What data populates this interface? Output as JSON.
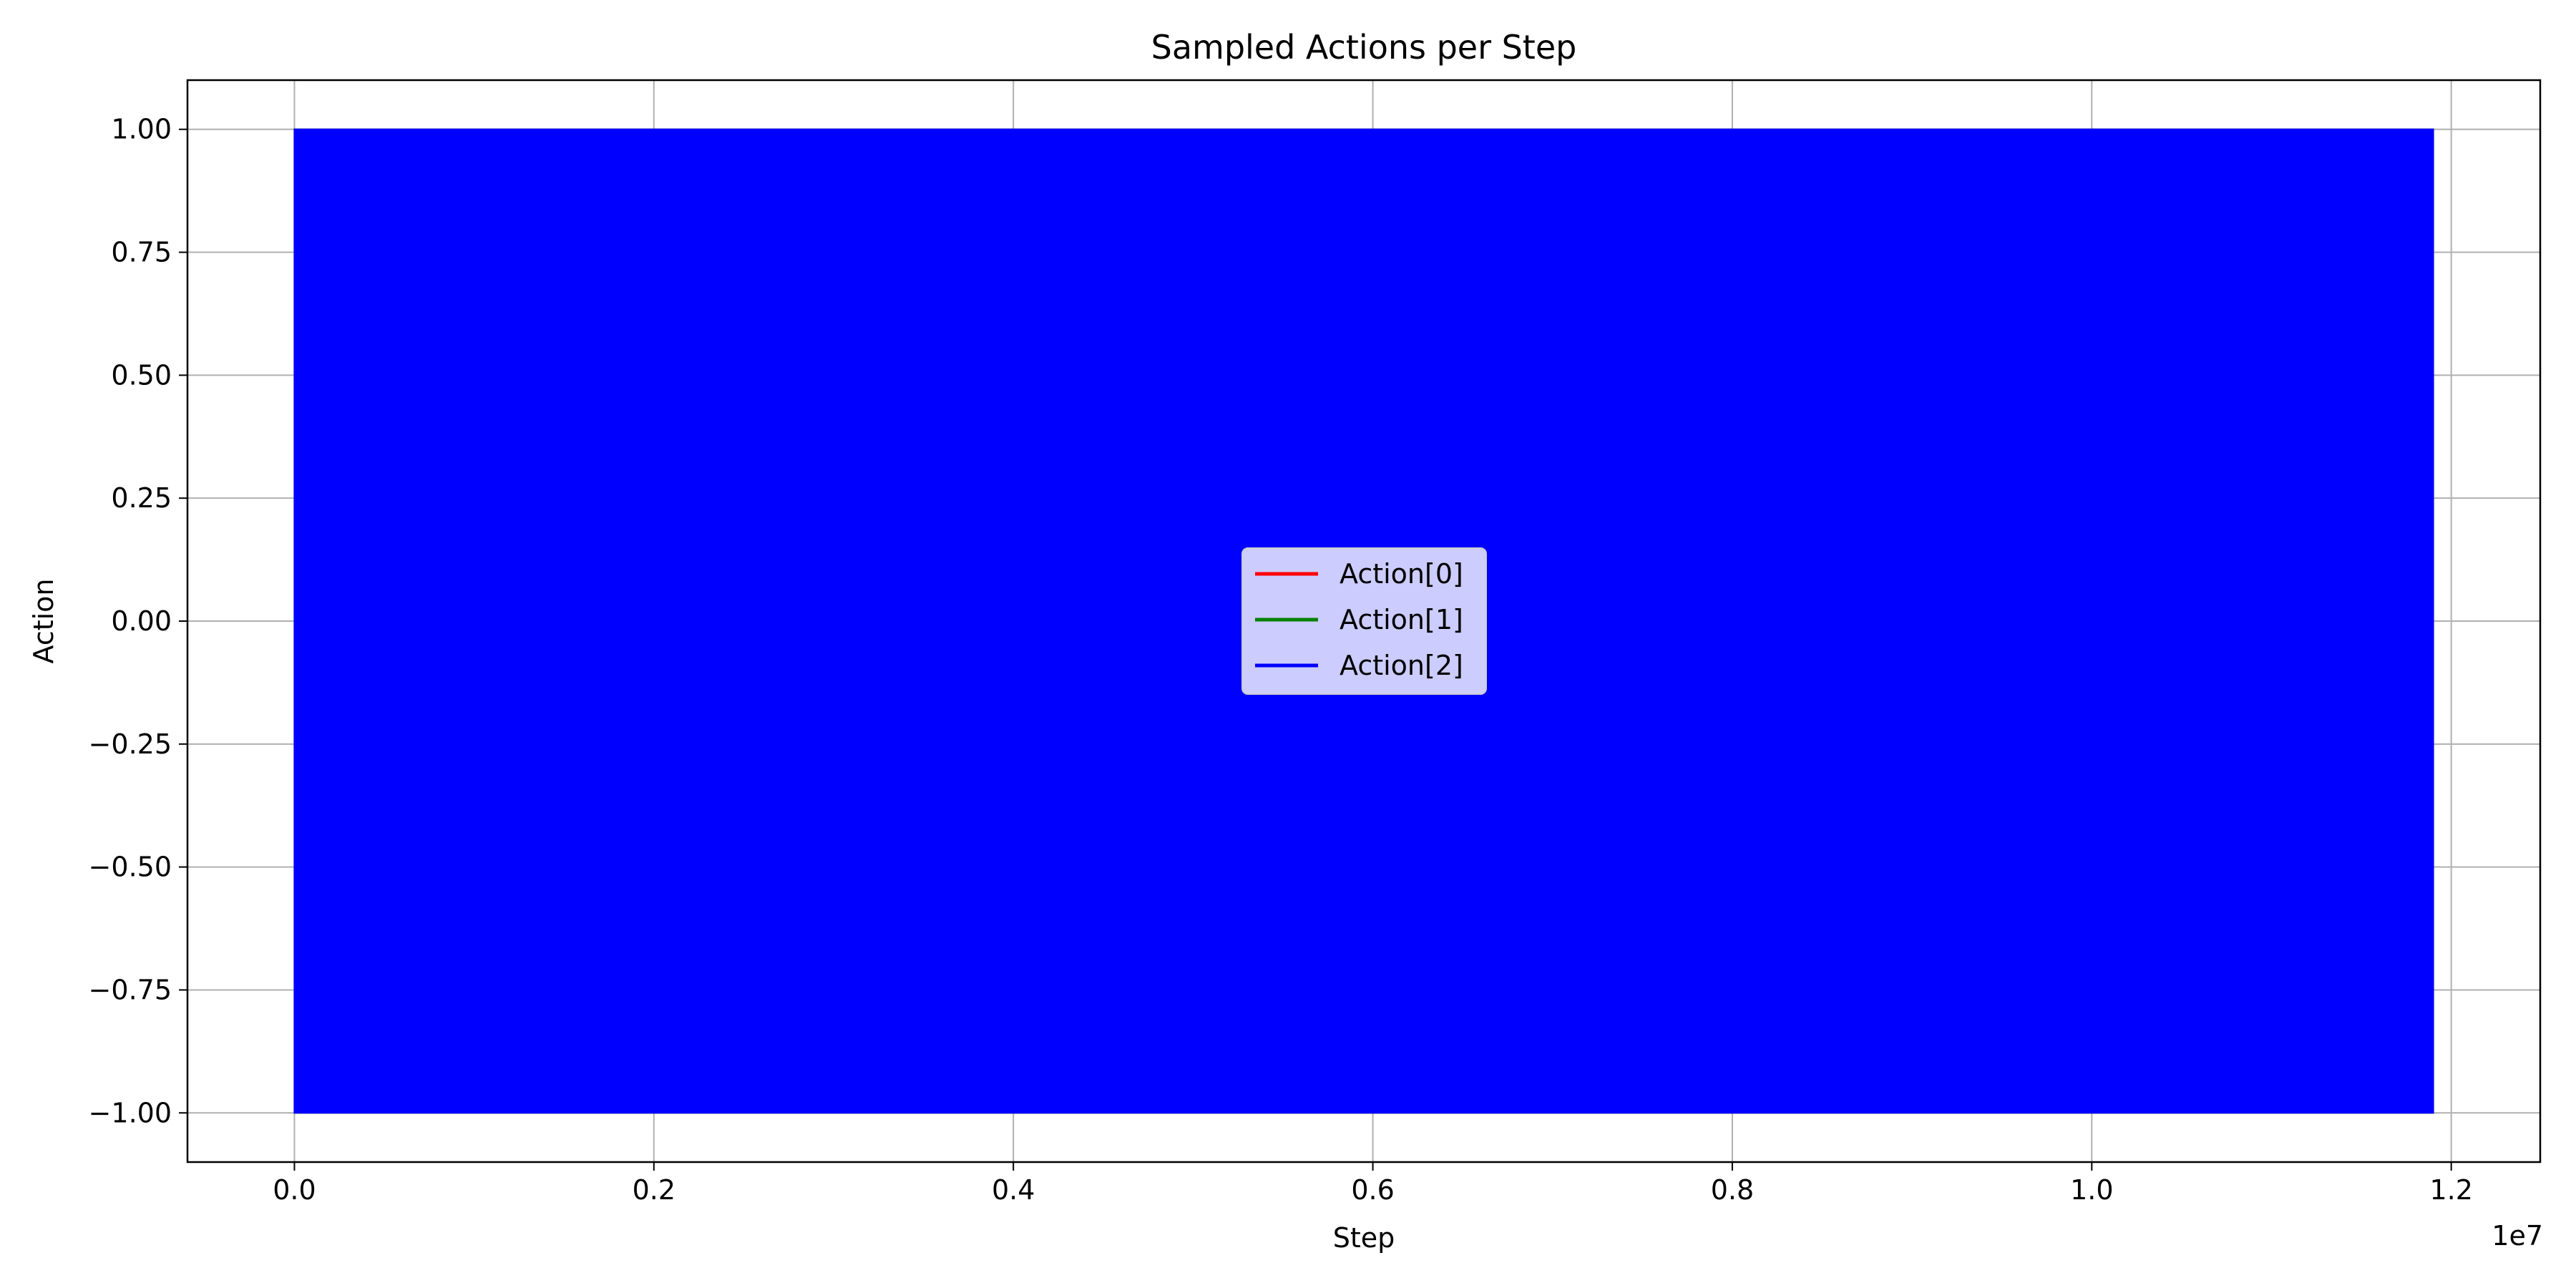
{
  "chart_data": {
    "type": "line",
    "title": "Sampled Actions per Step",
    "xlabel": "Step",
    "ylabel": "Action",
    "x_offset_label": "1e7",
    "xlim": [
      -0.0595,
      1.2495
    ],
    "ylim": [
      -1.1,
      1.1
    ],
    "x_ticks": [
      0.0,
      0.2,
      0.4,
      0.6,
      0.8,
      1.0,
      1.2
    ],
    "x_tick_labels": [
      "0.0",
      "0.2",
      "0.4",
      "0.6",
      "0.8",
      "1.0",
      "1.2"
    ],
    "y_ticks": [
      1.0,
      0.75,
      0.5,
      0.25,
      0.0,
      -0.25,
      -0.5,
      -0.75,
      -1.0
    ],
    "y_tick_labels": [
      "1.00",
      "0.75",
      "0.50",
      "0.25",
      "0.00",
      "−0.25",
      "−0.50",
      "−0.75",
      "−1.00"
    ],
    "grid": true,
    "legend_position": "center",
    "series": [
      {
        "name": "Action[0]",
        "color": "#ff0000",
        "x_range": [
          0.0,
          1.19
        ],
        "y_range": [
          -1.0,
          1.0
        ]
      },
      {
        "name": "Action[1]",
        "color": "#008000",
        "x_range": [
          0.0,
          1.19
        ],
        "y_range": [
          -1.0,
          1.0
        ]
      },
      {
        "name": "Action[2]",
        "color": "#0000ff",
        "x_range": [
          0.0,
          1.19
        ],
        "y_range": [
          -1.0,
          1.0
        ]
      }
    ]
  }
}
